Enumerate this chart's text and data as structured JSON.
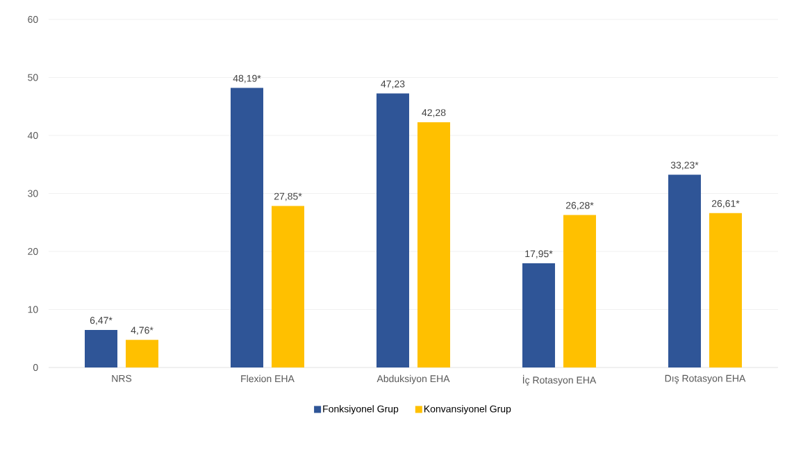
{
  "chart_data": {
    "type": "bar",
    "categories": [
      "NRS",
      "Flexion EHA",
      "Abduksiyon EHA",
      "İç Rotasyon  EHA",
      "Dış Rotasyon EHA"
    ],
    "series": [
      {
        "name": "Fonksiyonel Grup",
        "color": "#2f5597",
        "values": [
          6.47,
          48.19,
          47.23,
          17.95,
          33.23
        ],
        "value_labels": [
          "6,47*",
          "48,19*",
          "47,23",
          "17,95*",
          "33,23*"
        ]
      },
      {
        "name": "Konvansiyonel Grup",
        "color": "#ffc000",
        "values": [
          4.76,
          27.85,
          42.28,
          26.28,
          26.61
        ],
        "value_labels": [
          "4,76*",
          "27,85*",
          "42,28",
          "26,28*",
          "26,61*"
        ]
      }
    ],
    "ylim": [
      0,
      60
    ],
    "yticks": [
      0,
      10,
      20,
      30,
      40,
      50,
      60
    ],
    "grid": "y",
    "legend": "bottom"
  }
}
